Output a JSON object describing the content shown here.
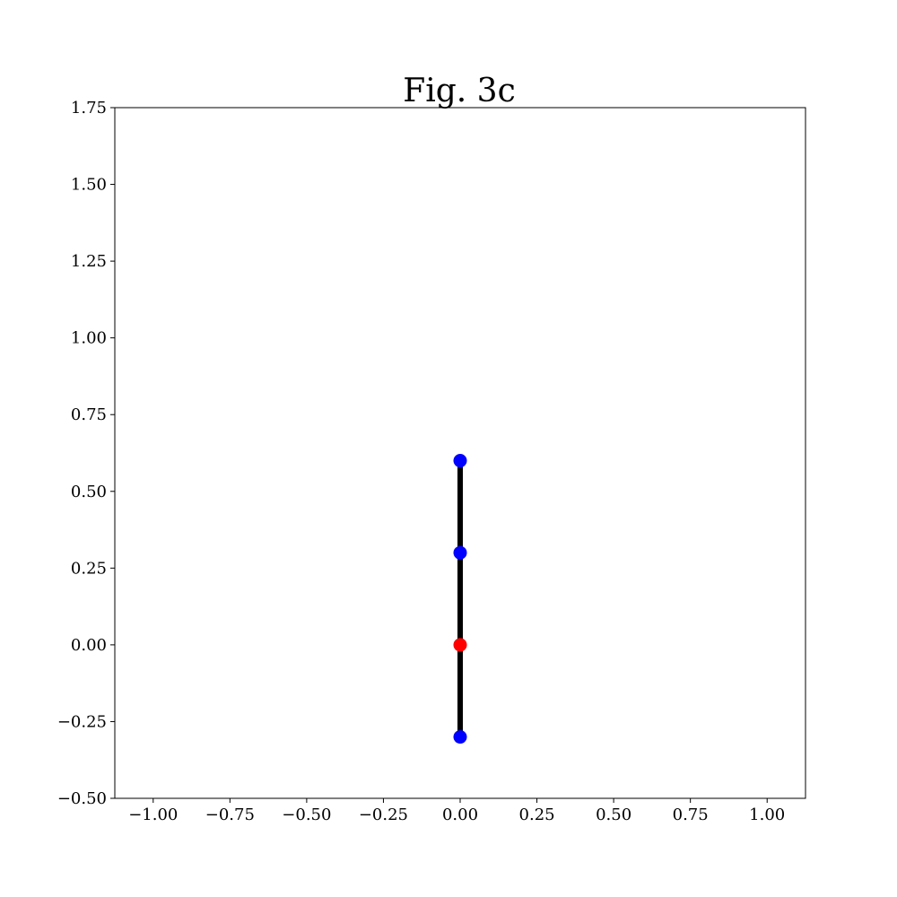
{
  "chart_data": {
    "type": "line",
    "title": "Fig. 3c",
    "xlabel": "",
    "ylabel": "",
    "xlim": [
      -1.125,
      1.125
    ],
    "ylim": [
      -0.5,
      1.75
    ],
    "x_ticks": [
      -1.0,
      -0.75,
      -0.5,
      -0.25,
      0.0,
      0.25,
      0.5,
      0.75,
      1.0
    ],
    "x_tick_labels": [
      "−1.00",
      "−0.75",
      "−0.50",
      "−0.25",
      "0.00",
      "0.25",
      "0.50",
      "0.75",
      "1.00"
    ],
    "y_ticks": [
      -0.5,
      -0.25,
      0.0,
      0.25,
      0.5,
      0.75,
      1.0,
      1.25,
      1.5,
      1.75
    ],
    "y_tick_labels": [
      "−0.50",
      "−0.25",
      "0.00",
      "0.25",
      "0.50",
      "0.75",
      "1.00",
      "1.25",
      "1.50",
      "1.75"
    ],
    "grid": false,
    "legend": false,
    "line": {
      "x": [
        0.0,
        0.0
      ],
      "y": [
        -0.3,
        0.6
      ],
      "color": "#000000"
    },
    "points": [
      {
        "x": 0.0,
        "y": 0.6,
        "color": "#0000ff"
      },
      {
        "x": 0.0,
        "y": 0.3,
        "color": "#0000ff"
      },
      {
        "x": 0.0,
        "y": 0.0,
        "color": "#ff0000"
      },
      {
        "x": 0.0,
        "y": -0.3,
        "color": "#0000ff"
      }
    ]
  }
}
